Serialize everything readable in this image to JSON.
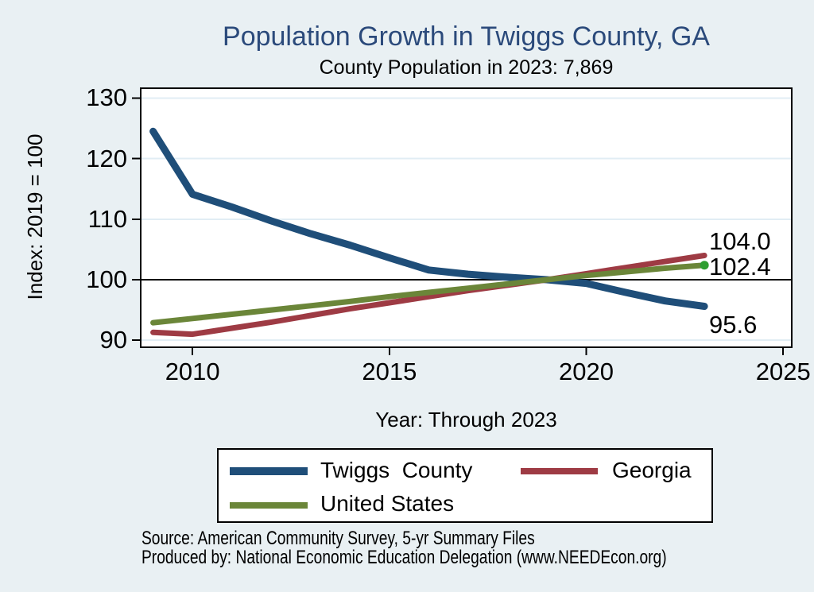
{
  "chart_data": {
    "type": "line",
    "title": "Population Growth in Twiggs County, GA",
    "subtitle": "County Population in 2023: 7,869",
    "xlabel": "Year: Through 2023",
    "ylabel": "Index: 2019 = 100",
    "x": [
      2009,
      2010,
      2011,
      2012,
      2013,
      2014,
      2015,
      2016,
      2017,
      2018,
      2019,
      2020,
      2021,
      2022,
      2023
    ],
    "series": [
      {
        "name": "Twiggs County",
        "legend_label": "Twiggs  County",
        "color": "#1F4E79",
        "line_width": 9,
        "values": [
          124.5,
          114.1,
          112.0,
          109.7,
          107.6,
          105.7,
          103.6,
          101.6,
          100.9,
          100.4,
          100.0,
          99.4,
          97.9,
          96.5,
          95.6
        ],
        "end_label": "95.6",
        "end_label_dy": 23,
        "end_marker": false
      },
      {
        "name": "Georgia",
        "legend_label": "Georgia",
        "color": "#9E3B44",
        "line_width": 7,
        "values": [
          91.3,
          91.0,
          92.0,
          93.0,
          94.1,
          95.2,
          96.2,
          97.2,
          98.2,
          99.1,
          100.0,
          101.0,
          102.0,
          103.0,
          104.0
        ],
        "end_label": "104.0",
        "end_label_dy": -17,
        "end_marker": false
      },
      {
        "name": "United States",
        "legend_label": "United States",
        "color": "#6B8639",
        "line_width": 7,
        "values": [
          92.9,
          93.6,
          94.3,
          95.0,
          95.7,
          96.4,
          97.2,
          97.9,
          98.6,
          99.3,
          100.0,
          100.7,
          101.3,
          101.9,
          102.4
        ],
        "end_label": "102.4",
        "end_label_dy": 2,
        "end_marker": true,
        "end_marker_color": "#2E9E30"
      }
    ],
    "xticks": [
      2010,
      2015,
      2020,
      2025
    ],
    "yticks": [
      90,
      100,
      110,
      120,
      130
    ],
    "xlim": [
      2008.664,
      2025.238
    ],
    "ylim": [
      88.72,
      131.74
    ],
    "reference_line": 100,
    "grid": true,
    "legend_position": "bottom-center"
  },
  "footer": {
    "source": "Source: American Community Survey, 5-yr Summary Files",
    "produced_by": "Produced by: National Economic Education Delegation (www.NEEDEcon.org)"
  },
  "colors": {
    "background": "#E9F0F3",
    "plot_background": "#FFFFFF",
    "grid": "#E1EDF4",
    "axis": "#000000",
    "title": "#2B4A7B"
  }
}
